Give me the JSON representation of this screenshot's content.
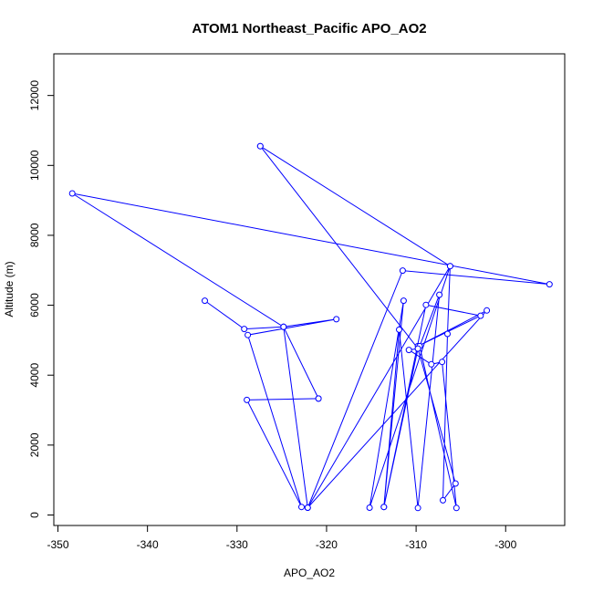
{
  "chart_data": {
    "type": "line",
    "title": "ATOM1 Northeast_Pacific APO_AO2",
    "xlabel": "APO_AO2",
    "ylabel": "Altitude (m)",
    "xlim": [
      -350,
      -295
    ],
    "ylim": [
      0,
      12000
    ],
    "xticks": [
      -350,
      -340,
      -330,
      -320,
      -310,
      -300
    ],
    "yticks": [
      0,
      2000,
      4000,
      6000,
      8000,
      10000,
      12000
    ],
    "grid": false,
    "legend": "none",
    "colors": {
      "series": "#0000ff",
      "axes": "#000000"
    },
    "series": [
      {
        "markers": "open-circle",
        "points": [
          [
            -333.6,
            6130
          ],
          [
            -329.2,
            5320
          ],
          [
            -324.8,
            5380
          ],
          [
            -318.9,
            5600
          ],
          [
            -328.8,
            5150
          ],
          [
            -322.8,
            230
          ],
          [
            -328.9,
            3290
          ],
          [
            -320.9,
            3330
          ],
          [
            -324.8,
            5380
          ],
          [
            -322.1,
            210
          ],
          [
            -311.5,
            6990
          ],
          [
            -295.1,
            6600
          ],
          [
            -348.4,
            9200
          ],
          [
            -324.8,
            5380
          ],
          [
            -320.9,
            3330
          ]
        ]
      },
      {
        "markers": "open-circle",
        "points": [
          [
            -327.4,
            10550
          ],
          [
            -306.2,
            7120
          ],
          [
            -315.2,
            210
          ],
          [
            -311.4,
            6130
          ],
          [
            -313.6,
            230
          ],
          [
            -308.9,
            6010
          ],
          [
            -302.8,
            5700
          ],
          [
            -309.8,
            4830
          ],
          [
            -302.1,
            5850
          ],
          [
            -322.1,
            210
          ],
          [
            -306.2,
            7120
          ],
          [
            -306.5,
            5180
          ],
          [
            -307.0,
            420
          ],
          [
            -305.6,
            900
          ],
          [
            -309.8,
            4760
          ],
          [
            -313.6,
            230
          ],
          [
            -311.9,
            5300
          ],
          [
            -309.8,
            200
          ],
          [
            -307.4,
            6300
          ],
          [
            -309.6,
            4830
          ],
          [
            -305.5,
            200
          ],
          [
            -307.1,
            4380
          ],
          [
            -308.3,
            4310
          ],
          [
            -310.8,
            4720
          ],
          [
            -309.8,
            4760
          ],
          [
            -327.4,
            10550
          ]
        ]
      }
    ]
  }
}
